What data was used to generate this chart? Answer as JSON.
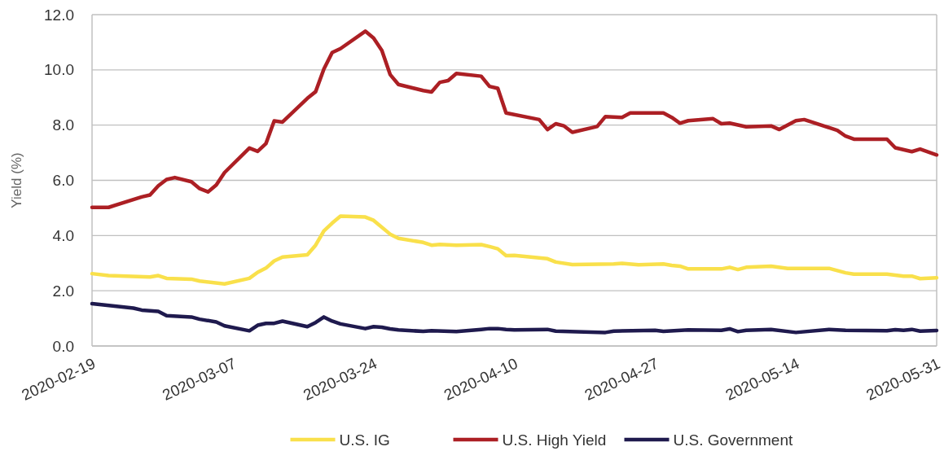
{
  "chart_data": {
    "type": "line",
    "ylabel": "Yield (%)",
    "ylim": [
      0,
      12
    ],
    "yticks": [
      {
        "value": 0,
        "label": "0.0"
      },
      {
        "value": 2,
        "label": "2.0"
      },
      {
        "value": 4,
        "label": "4.0"
      },
      {
        "value": 6,
        "label": "6.0"
      },
      {
        "value": 8,
        "label": "8.0"
      },
      {
        "value": 10,
        "label": "10.0"
      },
      {
        "value": 12,
        "label": "12.0"
      }
    ],
    "xlim": [
      "2020-02-19",
      "2020-05-31"
    ],
    "xticks": [
      "2020-02-19",
      "2020-03-07",
      "2020-03-24",
      "2020-04-10",
      "2020-04-27",
      "2020-05-14",
      "2020-05-31"
    ],
    "grid": "y",
    "legend": "bottom",
    "line_style": "solid",
    "marker": "none",
    "series": [
      {
        "name": "U.S. IG",
        "color": "#f9e04b",
        "x": [
          "2020-02-19",
          "2020-02-21",
          "2020-02-26",
          "2020-02-27",
          "2020-02-28",
          "2020-03-02",
          "2020-03-03",
          "2020-03-06",
          "2020-03-09",
          "2020-03-10",
          "2020-03-11",
          "2020-03-12",
          "2020-03-13",
          "2020-03-16",
          "2020-03-17",
          "2020-03-18",
          "2020-03-19",
          "2020-03-20",
          "2020-03-23",
          "2020-03-24",
          "2020-03-26",
          "2020-03-27",
          "2020-03-30",
          "2020-03-31",
          "2020-04-01",
          "2020-04-03",
          "2020-04-06",
          "2020-04-07",
          "2020-04-08",
          "2020-04-09",
          "2020-04-10",
          "2020-04-14",
          "2020-04-15",
          "2020-04-17",
          "2020-04-22",
          "2020-04-23",
          "2020-04-25",
          "2020-04-28",
          "2020-04-29",
          "2020-04-30",
          "2020-05-01",
          "2020-05-05",
          "2020-05-06",
          "2020-05-07",
          "2020-05-08",
          "2020-05-11",
          "2020-05-13",
          "2020-05-18",
          "2020-05-20",
          "2020-05-21",
          "2020-05-25",
          "2020-05-27",
          "2020-05-28",
          "2020-05-29",
          "2020-05-31"
        ],
        "values": [
          2.62,
          2.55,
          2.5,
          2.55,
          2.45,
          2.42,
          2.35,
          2.25,
          2.45,
          2.67,
          2.82,
          3.08,
          3.22,
          3.3,
          3.65,
          4.17,
          4.45,
          4.7,
          4.67,
          4.55,
          4.05,
          3.9,
          3.75,
          3.65,
          3.68,
          3.65,
          3.67,
          3.6,
          3.52,
          3.27,
          3.28,
          3.16,
          3.04,
          2.95,
          2.97,
          2.99,
          2.94,
          2.97,
          2.92,
          2.89,
          2.79,
          2.79,
          2.85,
          2.77,
          2.85,
          2.89,
          2.81,
          2.81,
          2.65,
          2.6,
          2.6,
          2.53,
          2.53,
          2.44,
          2.47
        ]
      },
      {
        "name": "U.S. High Yield",
        "color": "#ac1f24",
        "x": [
          "2020-02-19",
          "2020-02-21",
          "2020-02-25",
          "2020-02-26",
          "2020-02-27",
          "2020-02-28",
          "2020-02-29",
          "2020-03-02",
          "2020-03-03",
          "2020-03-04",
          "2020-03-05",
          "2020-03-06",
          "2020-03-09",
          "2020-03-10",
          "2020-03-11",
          "2020-03-12",
          "2020-03-13",
          "2020-03-16",
          "2020-03-17",
          "2020-03-18",
          "2020-03-19",
          "2020-03-20",
          "2020-03-23",
          "2020-03-24",
          "2020-03-25",
          "2020-03-26",
          "2020-03-27",
          "2020-03-30",
          "2020-03-31",
          "2020-04-01",
          "2020-04-02",
          "2020-04-03",
          "2020-04-06",
          "2020-04-07",
          "2020-04-08",
          "2020-04-09",
          "2020-04-13",
          "2020-04-14",
          "2020-04-15",
          "2020-04-16",
          "2020-04-17",
          "2020-04-20",
          "2020-04-21",
          "2020-04-23",
          "2020-04-24",
          "2020-04-28",
          "2020-04-29",
          "2020-04-30",
          "2020-05-01",
          "2020-05-04",
          "2020-05-05",
          "2020-05-06",
          "2020-05-08",
          "2020-05-11",
          "2020-05-12",
          "2020-05-14",
          "2020-05-15",
          "2020-05-19",
          "2020-05-20",
          "2020-05-21",
          "2020-05-25",
          "2020-05-26",
          "2020-05-28",
          "2020-05-29",
          "2020-05-31"
        ],
        "values": [
          5.02,
          5.02,
          5.4,
          5.47,
          5.8,
          6.03,
          6.1,
          5.95,
          5.7,
          5.58,
          5.83,
          6.28,
          7.17,
          7.05,
          7.33,
          8.15,
          8.11,
          8.97,
          9.21,
          10.03,
          10.63,
          10.77,
          11.4,
          11.15,
          10.7,
          9.83,
          9.47,
          9.25,
          9.2,
          9.55,
          9.61,
          9.87,
          9.77,
          9.4,
          9.33,
          8.44,
          8.2,
          7.84,
          8.05,
          7.97,
          7.74,
          7.95,
          8.31,
          8.28,
          8.44,
          8.44,
          8.28,
          8.07,
          8.16,
          8.23,
          8.05,
          8.07,
          7.94,
          7.97,
          7.84,
          8.16,
          8.2,
          7.81,
          7.6,
          7.49,
          7.49,
          7.18,
          7.04,
          7.13,
          6.92
        ]
      },
      {
        "name": "U.S. Government",
        "color": "#1f1a4e",
        "x": [
          "2020-02-19",
          "2020-02-24",
          "2020-02-25",
          "2020-02-27",
          "2020-02-28",
          "2020-03-02",
          "2020-03-03",
          "2020-03-05",
          "2020-03-06",
          "2020-03-09",
          "2020-03-10",
          "2020-03-11",
          "2020-03-12",
          "2020-03-13",
          "2020-03-16",
          "2020-03-17",
          "2020-03-18",
          "2020-03-19",
          "2020-03-20",
          "2020-03-23",
          "2020-03-24",
          "2020-03-25",
          "2020-03-26",
          "2020-03-27",
          "2020-03-30",
          "2020-03-31",
          "2020-04-03",
          "2020-04-06",
          "2020-04-07",
          "2020-04-08",
          "2020-04-09",
          "2020-04-10",
          "2020-04-14",
          "2020-04-15",
          "2020-04-21",
          "2020-04-22",
          "2020-04-27",
          "2020-04-28",
          "2020-05-01",
          "2020-05-05",
          "2020-05-06",
          "2020-05-07",
          "2020-05-08",
          "2020-05-11",
          "2020-05-14",
          "2020-05-18",
          "2020-05-20",
          "2020-05-25",
          "2020-05-26",
          "2020-05-27",
          "2020-05-28",
          "2020-05-29",
          "2020-05-31"
        ],
        "values": [
          1.53,
          1.37,
          1.3,
          1.25,
          1.1,
          1.05,
          0.97,
          0.87,
          0.73,
          0.55,
          0.75,
          0.82,
          0.82,
          0.9,
          0.7,
          0.85,
          1.05,
          0.9,
          0.8,
          0.63,
          0.7,
          0.68,
          0.62,
          0.58,
          0.53,
          0.55,
          0.52,
          0.6,
          0.63,
          0.63,
          0.6,
          0.58,
          0.6,
          0.54,
          0.49,
          0.54,
          0.57,
          0.53,
          0.58,
          0.57,
          0.62,
          0.52,
          0.57,
          0.6,
          0.49,
          0.6,
          0.57,
          0.55,
          0.59,
          0.57,
          0.6,
          0.54,
          0.56
        ]
      }
    ]
  }
}
